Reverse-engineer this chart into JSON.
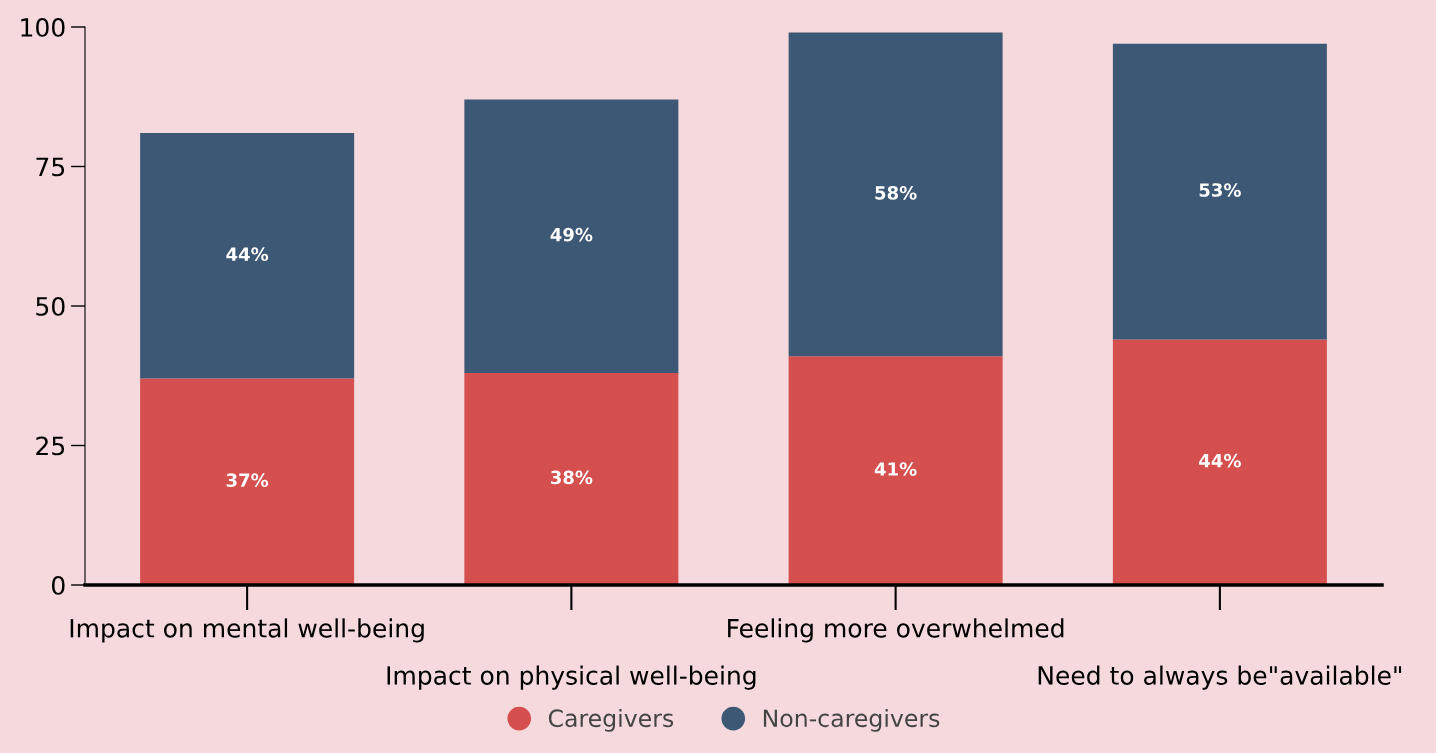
{
  "chart_data": {
    "type": "bar",
    "stacked": true,
    "categories": [
      "Impact on mental well-being",
      "Impact on physical well-being",
      "Feeling more overwhelmed",
      "Need to always be\"available\""
    ],
    "series": [
      {
        "name": "Caregivers",
        "color": "#d64f4f",
        "values": [
          37,
          38,
          41,
          44
        ],
        "value_labels": [
          "37%",
          "38%",
          "41%",
          "44%"
        ]
      },
      {
        "name": "Non-caregivers",
        "color": "#3d5875",
        "values": [
          44,
          49,
          58,
          53
        ],
        "value_labels": [
          "44%",
          "49%",
          "58%",
          "53%"
        ]
      }
    ],
    "ylim": [
      0,
      100
    ],
    "yticks": [
      0,
      25,
      50,
      75,
      100
    ],
    "legend": "bottom",
    "grid": false
  }
}
